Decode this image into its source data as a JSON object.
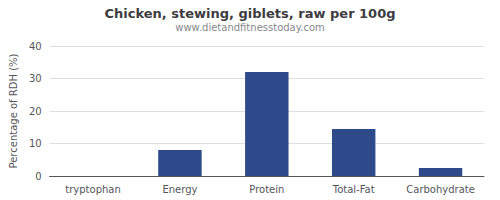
{
  "chart_data": {
    "type": "bar",
    "title": "Chicken, stewing, giblets, raw per 100g",
    "subtitle": "www.dietandfitnesstoday.com",
    "ylabel": "Percentage of RDH (%)",
    "categories": [
      "tryptophan",
      "Energy",
      "Protein",
      "Total-Fat",
      "Carbohydrate"
    ],
    "values": [
      0,
      8,
      32,
      14.5,
      2.5
    ],
    "color": "#2e4a8a",
    "ylim": [
      0,
      40
    ],
    "yticks": [
      0,
      10,
      20,
      30,
      40
    ],
    "grid": true
  }
}
